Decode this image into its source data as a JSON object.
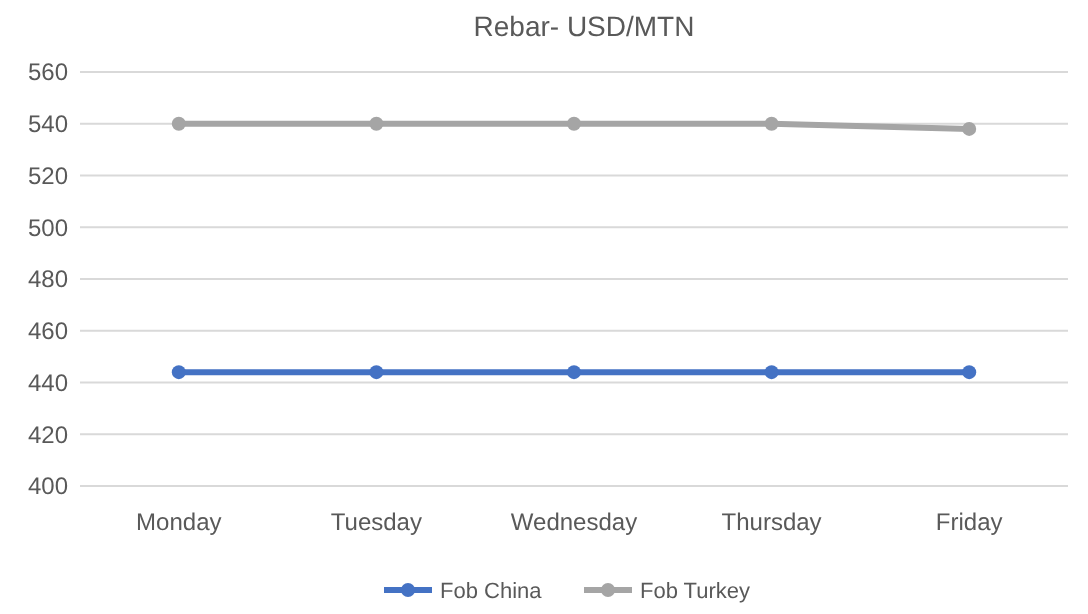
{
  "chart_data": {
    "type": "line",
    "title": "Rebar- USD/MTN",
    "categories": [
      "Monday",
      "Tuesday",
      "Wednesday",
      "Thursday",
      "Friday"
    ],
    "series": [
      {
        "name": "Fob China",
        "color": "#4472c4",
        "values": [
          444,
          444,
          444,
          444,
          444
        ]
      },
      {
        "name": "Fob Turkey",
        "color": "#a5a5a5",
        "values": [
          540,
          540,
          540,
          540,
          538
        ]
      }
    ],
    "ylim": [
      400,
      560
    ],
    "yticks": [
      400,
      420,
      440,
      460,
      480,
      500,
      520,
      540,
      560
    ],
    "grid": "y",
    "legend": "bottom",
    "marker": "circle",
    "line_style": "solid"
  }
}
